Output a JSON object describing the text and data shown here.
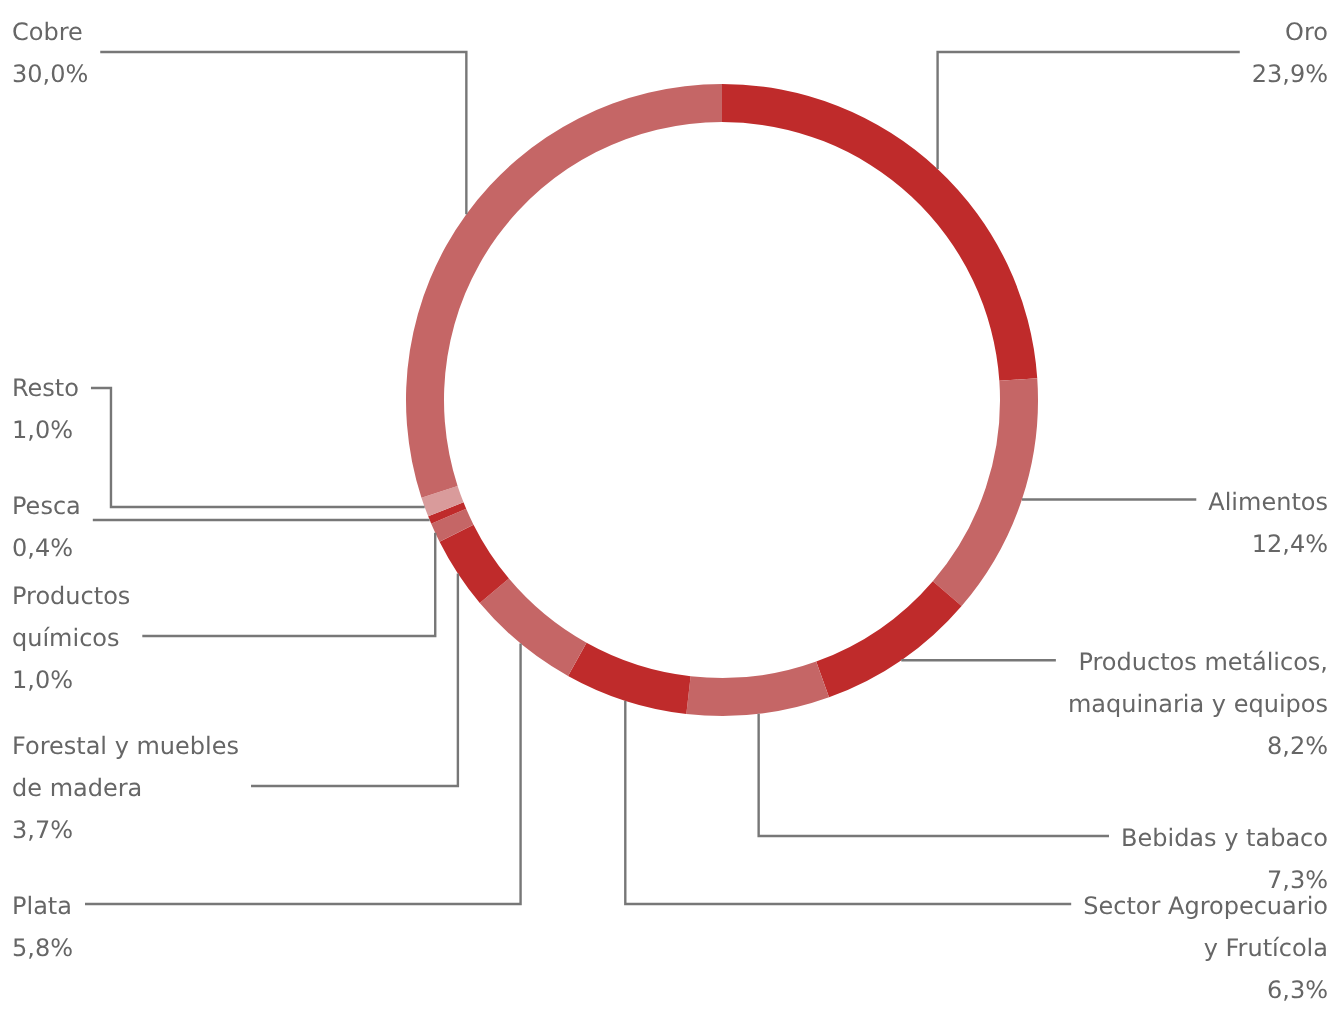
{
  "chart_data": {
    "type": "donut",
    "categories": [
      "Oro",
      "Alimentos",
      "Productos metálicos, maquinaria y equipos",
      "Bebidas y tabaco",
      "Sector Agropecuario y Frutícola",
      "Plata",
      "Forestal y muebles de madera",
      "Productos químicos",
      "Pesca",
      "Resto",
      "Cobre"
    ],
    "values": [
      23.9,
      12.4,
      8.2,
      7.3,
      6.3,
      5.8,
      3.7,
      1.0,
      0.4,
      1.0,
      30.0
    ],
    "value_labels": [
      "23,9%",
      "12,4%",
      "8,2%",
      "7,3%",
      "6,3%",
      "5,8%",
      "3,7%",
      "1,0%",
      "0,4%",
      "1,0%",
      "30,0%"
    ],
    "colors": [
      "#bf2b2b",
      "#c56666",
      "#bf2b2b",
      "#c56666",
      "#bf2b2b",
      "#c56666",
      "#bf2b2b",
      "#c56666",
      "#bf2b2b",
      "#d99b9b",
      "#c56666"
    ],
    "legend": false
  }
}
